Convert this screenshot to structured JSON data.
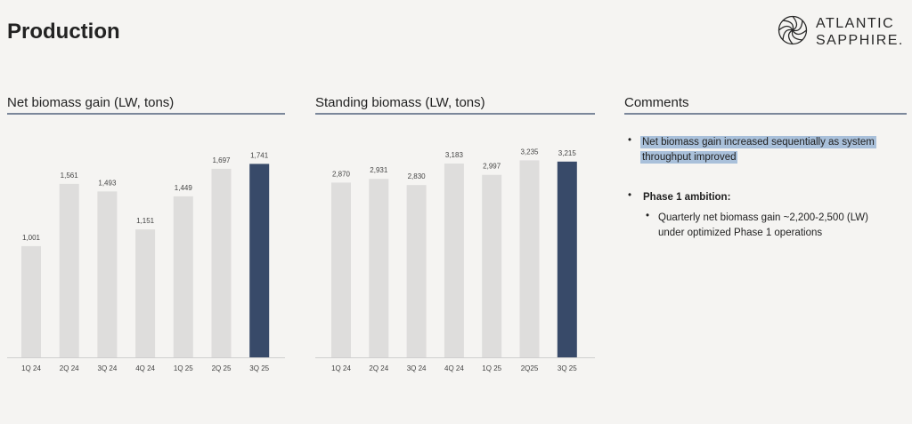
{
  "page": {
    "title": "Production"
  },
  "logo": {
    "line1": "ATLANTIC",
    "line2": "SAPPHIRE."
  },
  "panels": {
    "net": {
      "heading": "Net biomass gain (LW, tons)"
    },
    "standing": {
      "heading": "Standing biomass (LW, tons)"
    },
    "comments": {
      "heading": "Comments"
    }
  },
  "comments": {
    "bullet1": "Net biomass gain increased sequentially as system throughput improved",
    "bullet2": "Phase 1 ambition:",
    "sub1": "Quarterly net biomass gain ~2,200-2,500 (LW) under optimized Phase 1 operations"
  },
  "colors": {
    "bar": "#dedddc",
    "highlight_bar": "#384a69",
    "rule": "#7b879a"
  },
  "chart_data": [
    {
      "type": "bar",
      "title": "Net biomass gain (LW, tons)",
      "categories": [
        "1Q 24",
        "2Q 24",
        "3Q 24",
        "4Q 24",
        "1Q 25",
        "2Q 25",
        "3Q 25"
      ],
      "values": [
        1001,
        1561,
        1493,
        1151,
        1449,
        1697,
        1741
      ],
      "labels": [
        "1,001",
        "1,561",
        "1,493",
        "1,151",
        "1,449",
        "1,697",
        "1,741"
      ],
      "highlight_index": 6,
      "ylim": [
        0,
        2000
      ],
      "grid": false
    },
    {
      "type": "bar",
      "title": "Standing biomass (LW, tons)",
      "categories": [
        "1Q 24",
        "2Q 24",
        "3Q 24",
        "4Q 24",
        "1Q 25",
        "2Q25",
        "3Q 25"
      ],
      "values": [
        2870,
        2931,
        2830,
        3183,
        2997,
        3235,
        3215
      ],
      "labels": [
        "2,870",
        "2,931",
        "2,830",
        "3,183",
        "2,997",
        "3,235",
        "3,215"
      ],
      "highlight_index": 6,
      "ylim": [
        0,
        3650
      ],
      "grid": false
    }
  ]
}
